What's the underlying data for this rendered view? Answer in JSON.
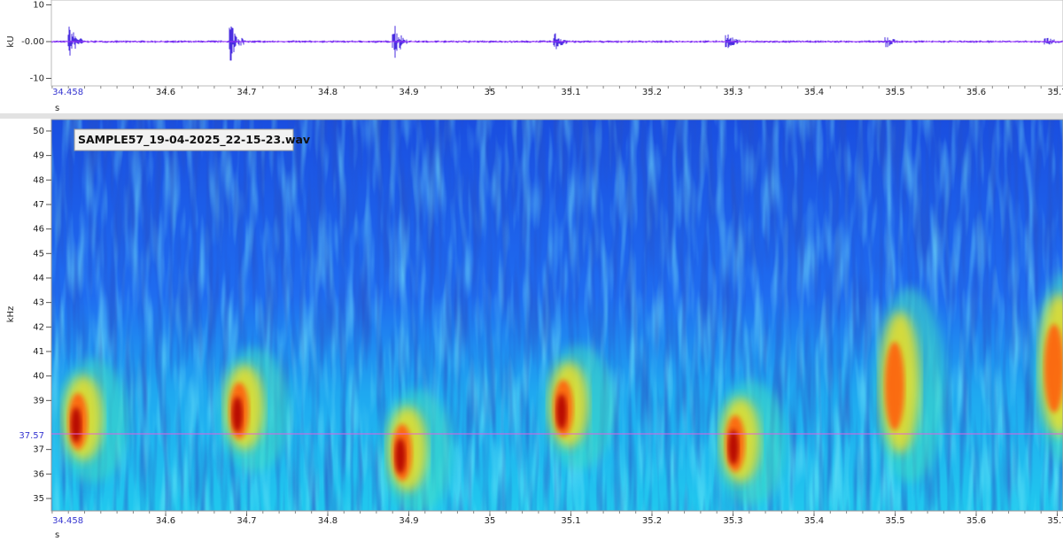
{
  "waveform": {
    "y_unit": "kU",
    "y_ticks": [
      10,
      {
        "value": 0,
        "label": "-0.00"
      },
      -10
    ],
    "x_start": 34.458,
    "x_ticks": [
      34.6,
      34.7,
      34.8,
      34.9,
      35,
      35.1,
      35.2,
      35.3,
      35.4,
      35.5,
      35.6,
      35.7
    ],
    "x_unit": "s"
  },
  "spectrogram": {
    "file_name": "SAMPLE57_19-04-2025_22-15-23.wav",
    "y_unit": "kHz",
    "y_ticks": [
      50,
      49,
      48,
      47,
      46,
      45,
      44,
      43,
      42,
      41,
      40,
      39,
      37,
      36,
      35
    ],
    "cursor_label": 37.57,
    "x_start": 34.458,
    "x_ticks": [
      34.6,
      34.7,
      34.8,
      34.9,
      35,
      35.1,
      35.2,
      35.3,
      35.4,
      35.5,
      35.6,
      35.7
    ],
    "x_unit": "s"
  }
}
